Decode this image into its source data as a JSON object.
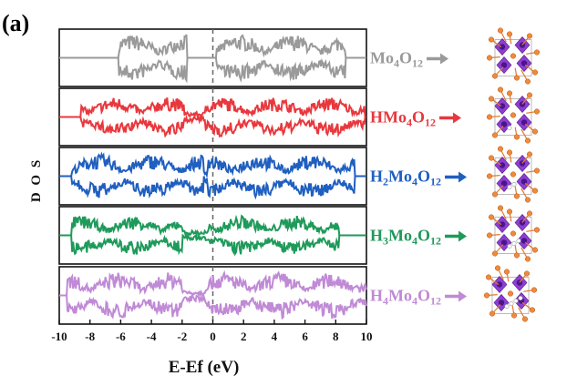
{
  "panel_label": "(a)",
  "chart_data": {
    "type": "line",
    "title": "",
    "xlabel": "E-Ef (eV)",
    "ylabel": "D O S",
    "xlim": [
      -10,
      10
    ],
    "xticks": [
      -10,
      -8,
      -6,
      -4,
      -2,
      0,
      2,
      4,
      6,
      8,
      10
    ],
    "xtick_labels": [
      "-10",
      "-8",
      "-6",
      "-4",
      "-2",
      "0",
      "2",
      "4",
      "6",
      "8",
      "10"
    ],
    "fermi_line": {
      "x": 0,
      "style": "dashed"
    },
    "layout": "stacked panels, one per series, mirrored spin-up / spin-down DOS",
    "series": [
      {
        "name": "Mo4O12",
        "label_parts": [
          [
            "Mo",
            ""
          ],
          [
            "4",
            "sub"
          ],
          [
            "O",
            ""
          ],
          [
            "12",
            "sub"
          ]
        ],
        "color": "#9a9a9a",
        "bands": [
          [
            -6.1,
            -1.7
          ],
          [
            0.2,
            8.6
          ]
        ],
        "amplitude": 1.0,
        "in_gap": 0.0
      },
      {
        "name": "HMo4O12",
        "label_parts": [
          [
            "HMo",
            ""
          ],
          [
            "4",
            "sub"
          ],
          [
            "O",
            ""
          ],
          [
            "12",
            "sub"
          ]
        ],
        "color": "#e8383d",
        "bands": [
          [
            -8.6,
            -1.9
          ],
          [
            -0.5,
            9.9
          ]
        ],
        "amplitude": 0.85,
        "in_gap": 0.25
      },
      {
        "name": "H2Mo4O12",
        "label_parts": [
          [
            "H",
            ""
          ],
          [
            "2",
            "sub"
          ],
          [
            "Mo",
            ""
          ],
          [
            "4",
            "sub"
          ],
          [
            "O",
            ""
          ],
          [
            "12",
            "sub"
          ]
        ],
        "color": "#1f5fc0",
        "bands": [
          [
            -9.2,
            -0.6
          ],
          [
            -0.4,
            9.2
          ]
        ],
        "amplitude": 0.95,
        "in_gap": 0.3
      },
      {
        "name": "H3Mo4O12",
        "label_parts": [
          [
            "H",
            ""
          ],
          [
            "3",
            "sub"
          ],
          [
            "Mo",
            ""
          ],
          [
            "4",
            "sub"
          ],
          [
            "O",
            ""
          ],
          [
            "12",
            "sub"
          ]
        ],
        "color": "#1e9a5a",
        "bands": [
          [
            -9.2,
            -2.0
          ],
          [
            -0.3,
            8.2
          ]
        ],
        "amplitude": 0.85,
        "in_gap": 0.25
      },
      {
        "name": "H4Mo4O12",
        "label_parts": [
          [
            "H",
            ""
          ],
          [
            "4",
            "sub"
          ],
          [
            "Mo",
            ""
          ],
          [
            "4",
            "sub"
          ],
          [
            "O",
            ""
          ],
          [
            "12",
            "sub"
          ]
        ],
        "color": "#c08ad6",
        "bands": [
          [
            -9.5,
            -2.0
          ],
          [
            -0.5,
            10.0
          ]
        ],
        "amplitude": 1.0,
        "in_gap": 0.25
      }
    ],
    "structure_images": [
      "Mo4O12 crystal structure",
      "HMo4O12 crystal structure",
      "H2Mo4O12 crystal structure",
      "H3Mo4O12 crystal structure",
      "H4Mo4O12 crystal structure"
    ]
  }
}
